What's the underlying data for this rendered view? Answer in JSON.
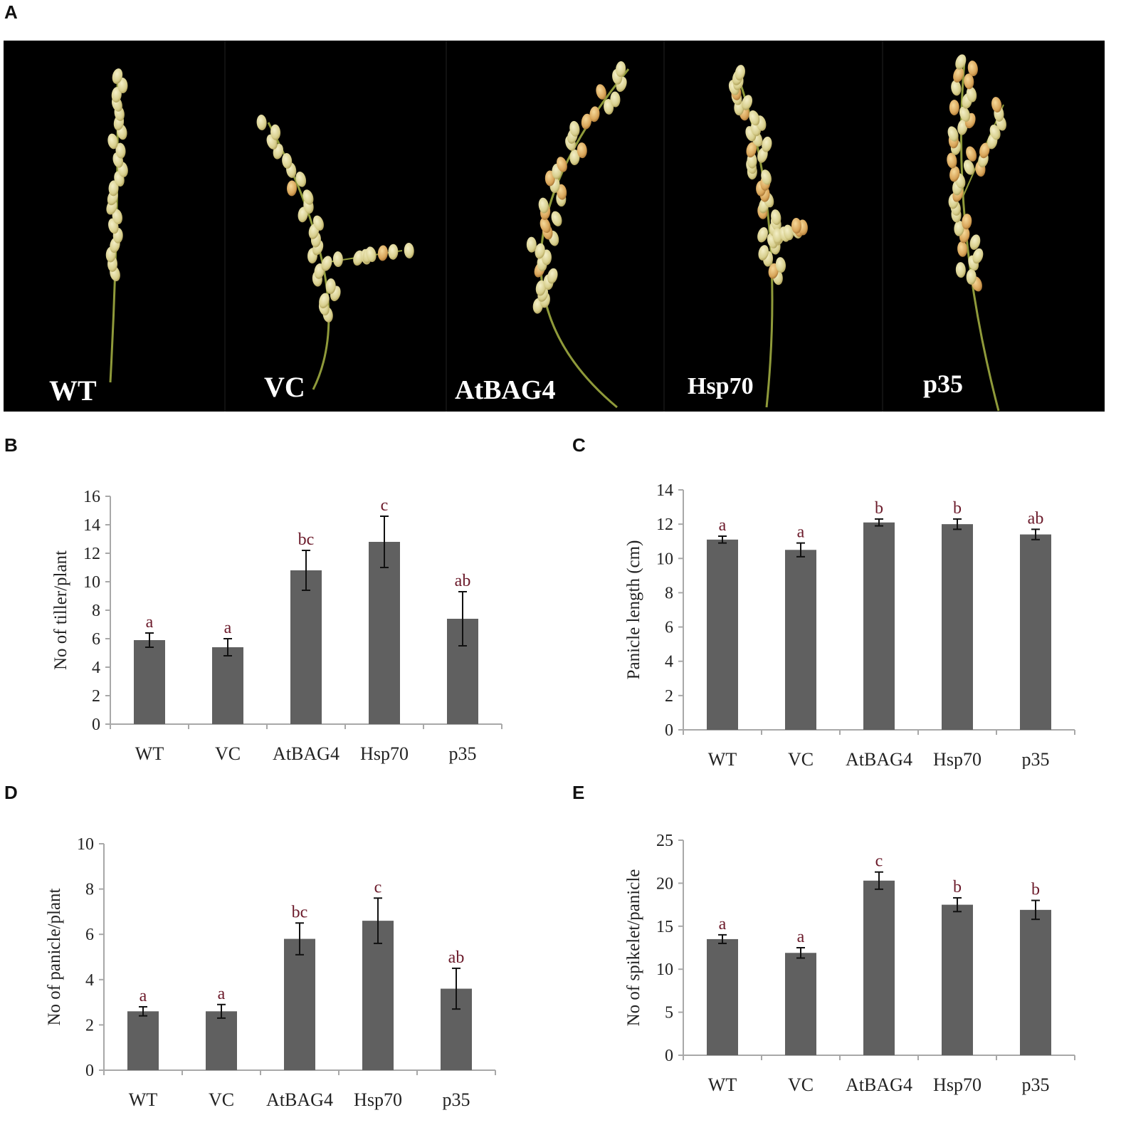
{
  "panels": {
    "a": "A",
    "b": "B",
    "c": "C",
    "d": "D",
    "e": "E"
  },
  "photo": {
    "labels": [
      "WT",
      "VC",
      "AtBAG4",
      "Hsp70",
      "p35"
    ]
  },
  "chart_data": [
    {
      "id": "B",
      "type": "bar",
      "categories": [
        "WT",
        "VC",
        "AtBAG4",
        "Hsp70",
        "p35"
      ],
      "values": [
        5.9,
        5.4,
        10.8,
        12.8,
        7.4
      ],
      "errors": [
        0.5,
        0.6,
        1.4,
        1.8,
        1.9
      ],
      "letters": [
        "a",
        "a",
        "bc",
        "c",
        "ab"
      ],
      "ylabel": "No of  tiller/plant",
      "xlabel": "",
      "ylim": [
        0,
        16
      ],
      "yticks": [
        0,
        2,
        4,
        6,
        8,
        10,
        12,
        14,
        16
      ],
      "color": "#606060"
    },
    {
      "id": "C",
      "type": "bar",
      "categories": [
        "WT",
        "VC",
        "AtBAG4",
        "Hsp70",
        "p35"
      ],
      "values": [
        11.1,
        10.5,
        12.1,
        12.0,
        11.4
      ],
      "errors": [
        0.2,
        0.4,
        0.2,
        0.3,
        0.3
      ],
      "letters": [
        "a",
        "a",
        "b",
        "b",
        "ab"
      ],
      "ylabel": "Panicle length (cm)",
      "xlabel": "",
      "ylim": [
        0,
        14
      ],
      "yticks": [
        0,
        2,
        4,
        6,
        8,
        10,
        12,
        14
      ],
      "color": "#606060"
    },
    {
      "id": "D",
      "type": "bar",
      "categories": [
        "WT",
        "VC",
        "AtBAG4",
        "Hsp70",
        "p35"
      ],
      "values": [
        2.6,
        2.6,
        5.8,
        6.6,
        3.6
      ],
      "errors": [
        0.2,
        0.3,
        0.7,
        1.0,
        0.9
      ],
      "letters": [
        "a",
        "a",
        "bc",
        "c",
        "ab"
      ],
      "ylabel": "No of panicle/plant",
      "xlabel": "",
      "ylim": [
        0,
        10
      ],
      "yticks": [
        0,
        2,
        4,
        6,
        8,
        10
      ],
      "color": "#606060"
    },
    {
      "id": "E",
      "type": "bar",
      "categories": [
        "WT",
        "VC",
        "AtBAG4",
        "Hsp70",
        "p35"
      ],
      "values": [
        13.5,
        11.9,
        20.3,
        17.5,
        16.9
      ],
      "errors": [
        0.5,
        0.6,
        1.0,
        0.8,
        1.1
      ],
      "letters": [
        "a",
        "a",
        "c",
        "b",
        "b"
      ],
      "ylabel": "No of spikelet/panicle",
      "xlabel": "",
      "ylim": [
        0,
        25
      ],
      "yticks": [
        0,
        5,
        10,
        15,
        20,
        25
      ],
      "color": "#606060"
    }
  ]
}
